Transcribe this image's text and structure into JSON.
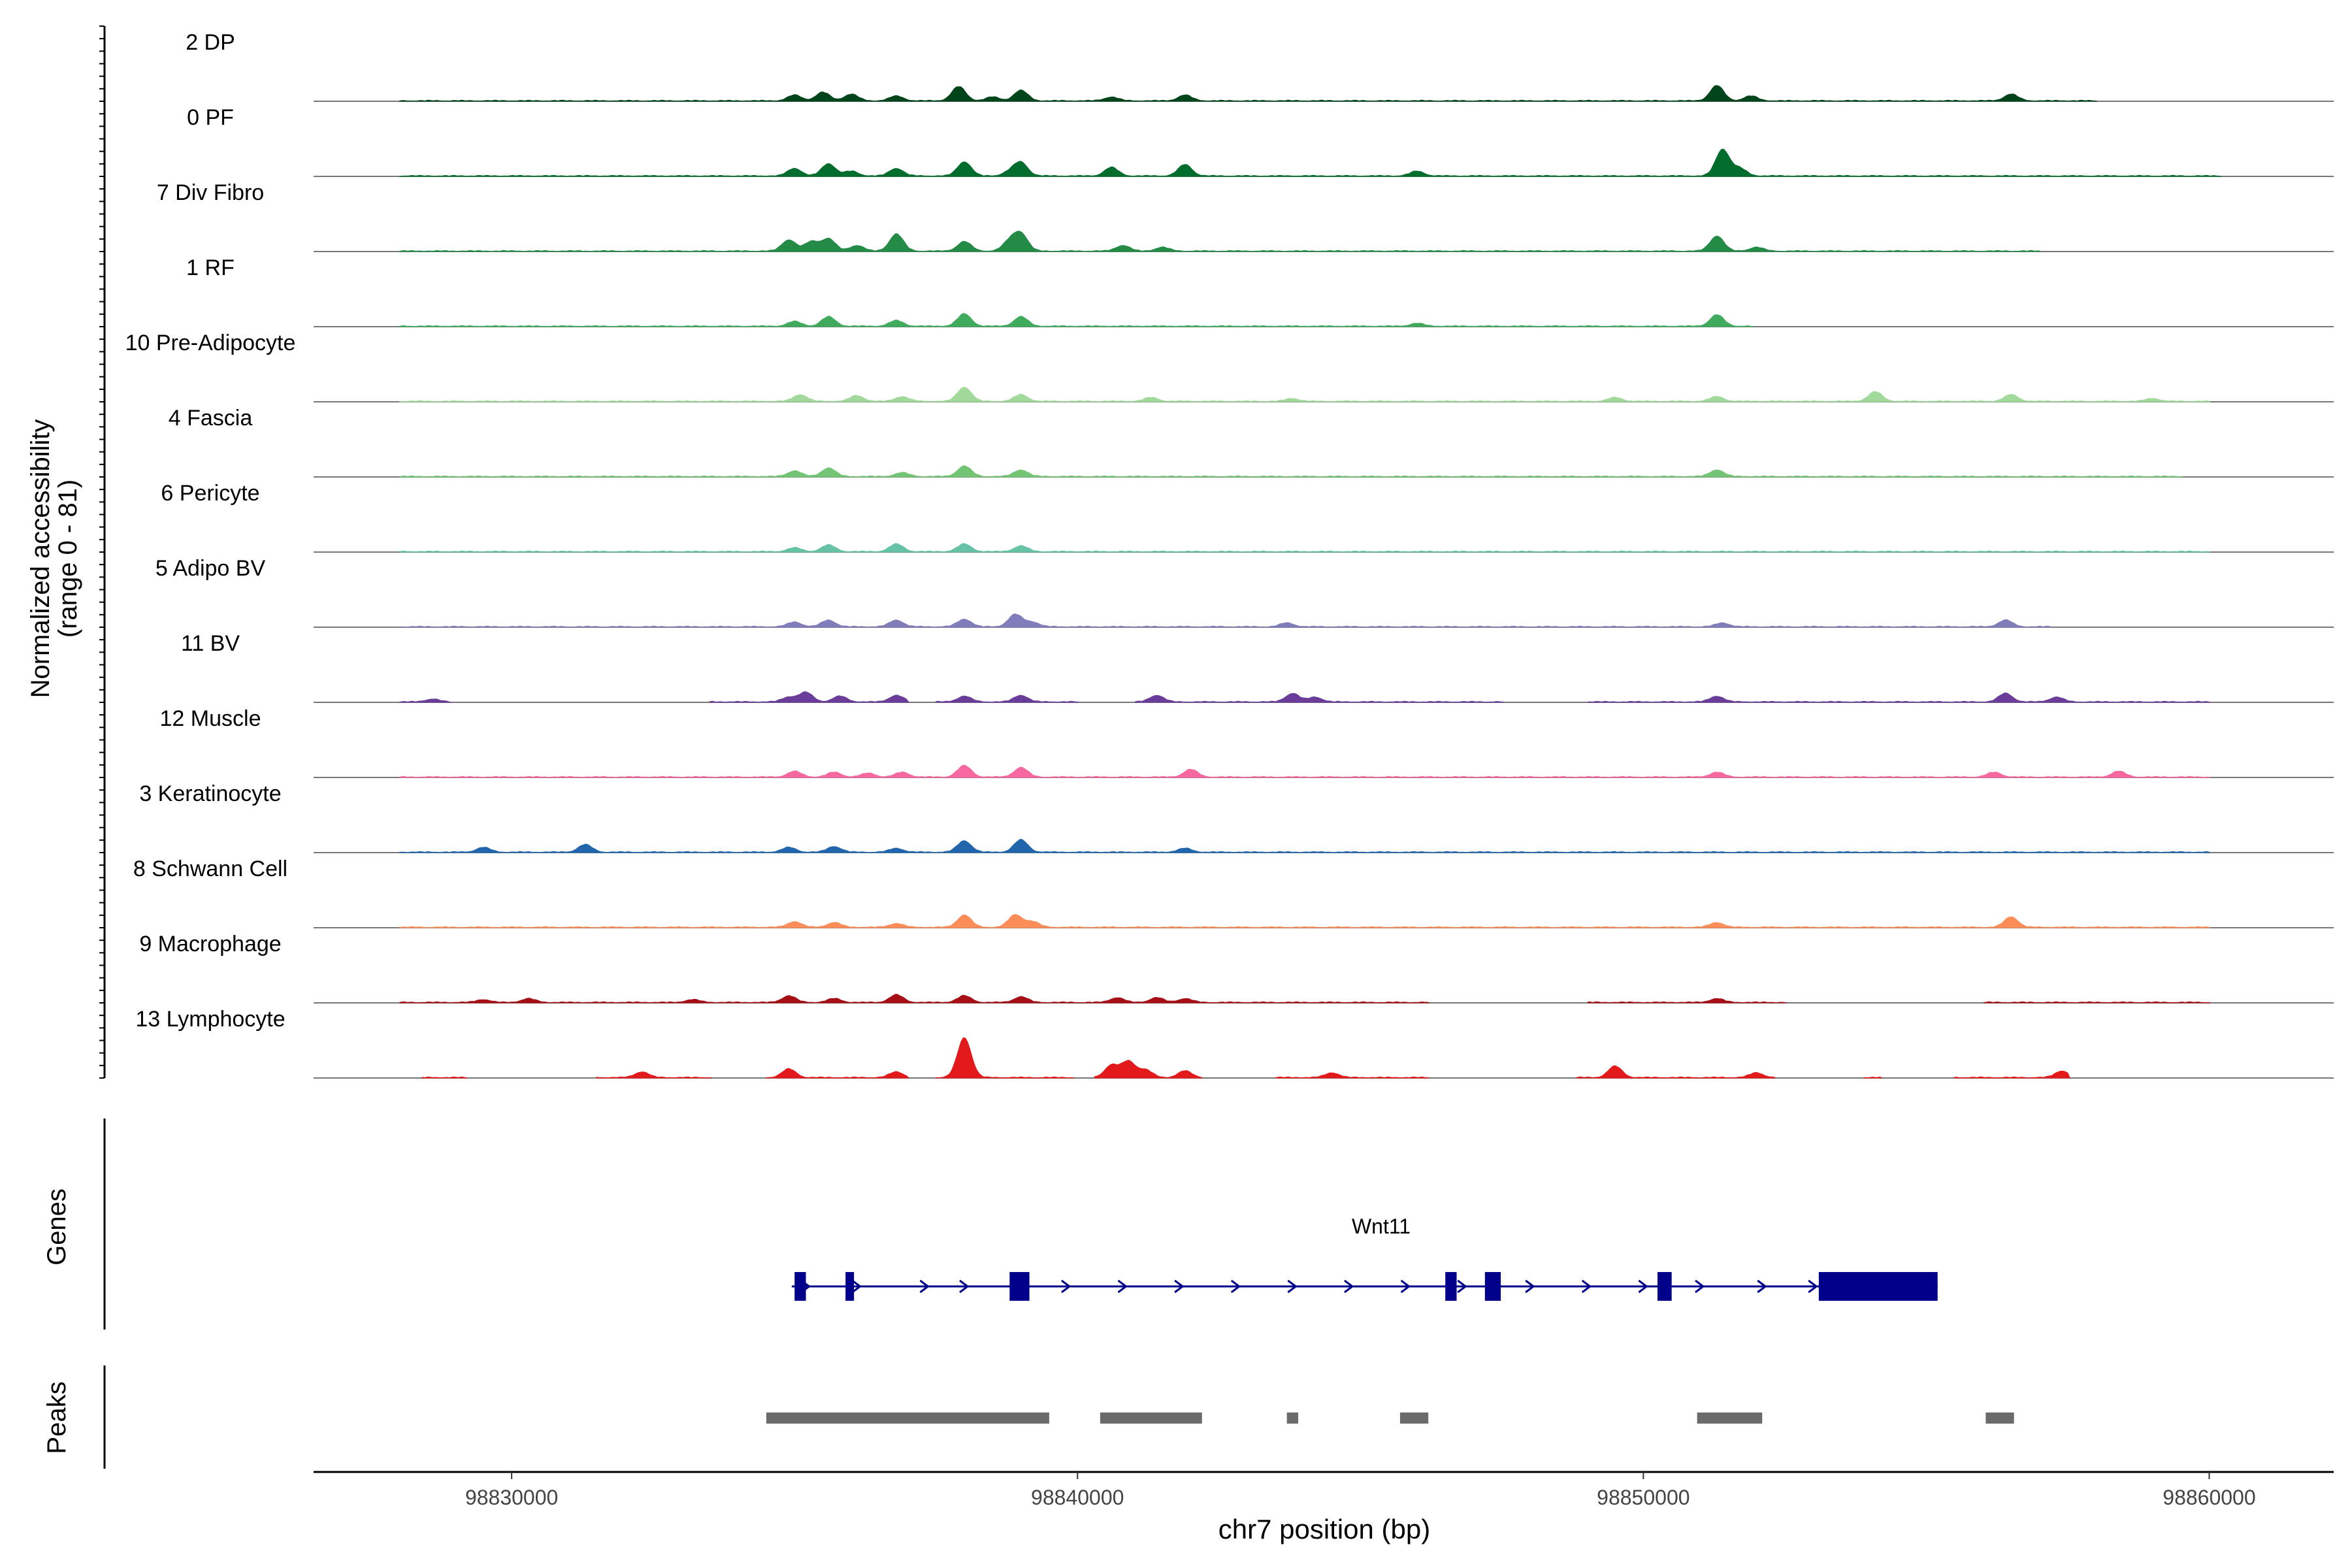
{
  "chart_data": {
    "type": "area",
    "subtype": "coverage-track",
    "chromosome": "chr7",
    "xlabel": "chr7 position (bp)",
    "ylabel_line1": "Normalized accessibility",
    "ylabel_line2": "(range 0 - 81)",
    "y_range": [
      0,
      81
    ],
    "x_range": [
      98826500,
      98862200
    ],
    "x_ticks": [
      98830000,
      98840000,
      98850000,
      98860000
    ],
    "x_tick_labels": [
      "98830000",
      "98840000",
      "98850000",
      "98860000"
    ],
    "tracks": [
      {
        "name": "2 DP",
        "color": "#00441b",
        "regions": [
          [
            98828000,
            98858000
          ]
        ],
        "peaks": [
          [
            98835000,
            6
          ],
          [
            98835500,
            9
          ],
          [
            98836000,
            7
          ],
          [
            98836800,
            5
          ],
          [
            98837900,
            15
          ],
          [
            98838500,
            4
          ],
          [
            98839000,
            11
          ],
          [
            98840600,
            4
          ],
          [
            98841900,
            6
          ],
          [
            98851300,
            16
          ],
          [
            98851900,
            5
          ],
          [
            98856500,
            7
          ]
        ]
      },
      {
        "name": "0 PF",
        "color": "#006d2c",
        "regions": [
          [
            98828000,
            98860200
          ]
        ],
        "peaks": [
          [
            98835000,
            8
          ],
          [
            98835600,
            13
          ],
          [
            98836000,
            5
          ],
          [
            98836800,
            8
          ],
          [
            98838000,
            15
          ],
          [
            98838800,
            4
          ],
          [
            98839000,
            14
          ],
          [
            98840600,
            9
          ],
          [
            98841900,
            12
          ],
          [
            98846000,
            5
          ],
          [
            98851400,
            28
          ],
          [
            98851700,
            8
          ]
        ]
      },
      {
        "name": "7 Div Fibro",
        "color": "#238b45",
        "regions": [
          [
            98828000,
            98857000
          ]
        ],
        "peaks": [
          [
            98834900,
            12
          ],
          [
            98835300,
            10
          ],
          [
            98835600,
            13
          ],
          [
            98836100,
            6
          ],
          [
            98836800,
            18
          ],
          [
            98838000,
            10
          ],
          [
            98838800,
            10
          ],
          [
            98839000,
            18
          ],
          [
            98840800,
            6
          ],
          [
            98841500,
            4
          ],
          [
            98851300,
            16
          ],
          [
            98852000,
            4
          ]
        ]
      },
      {
        "name": "1 RF",
        "color": "#41ab5d",
        "regions": [
          [
            98828000,
            98851900
          ]
        ],
        "peaks": [
          [
            98835000,
            5
          ],
          [
            98835600,
            10
          ],
          [
            98836800,
            6
          ],
          [
            98838000,
            13
          ],
          [
            98839000,
            10
          ],
          [
            98846000,
            3
          ],
          [
            98851300,
            12
          ]
        ]
      },
      {
        "name": "10 Pre-Adipocyte",
        "color": "#a1d99b",
        "regions": [
          [
            98828000,
            98860000
          ]
        ],
        "peaks": [
          [
            98835100,
            7
          ],
          [
            98836100,
            6
          ],
          [
            98836900,
            5
          ],
          [
            98838000,
            15
          ],
          [
            98839000,
            7
          ],
          [
            98841300,
            4
          ],
          [
            98843800,
            3
          ],
          [
            98849500,
            4
          ],
          [
            98851300,
            5
          ],
          [
            98854100,
            10
          ],
          [
            98856500,
            7
          ],
          [
            98859000,
            3
          ]
        ]
      },
      {
        "name": "4 Fascia",
        "color": "#74c476",
        "regions": [
          [
            98828000,
            98859500
          ]
        ],
        "peaks": [
          [
            98835000,
            6
          ],
          [
            98835600,
            9
          ],
          [
            98836900,
            4
          ],
          [
            98838000,
            11
          ],
          [
            98839000,
            7
          ],
          [
            98851300,
            7
          ]
        ]
      },
      {
        "name": "6 Pericyte",
        "color": "#66c2a4",
        "regions": [
          [
            98828000,
            98860000
          ]
        ],
        "peaks": [
          [
            98835000,
            4
          ],
          [
            98835600,
            7
          ],
          [
            98836800,
            8
          ],
          [
            98838000,
            8
          ],
          [
            98839000,
            6
          ]
        ]
      },
      {
        "name": "5 Adipo BV",
        "color": "#807dba",
        "regions": [
          [
            98828000,
            98857200
          ]
        ],
        "peaks": [
          [
            98835000,
            5
          ],
          [
            98835600,
            7
          ],
          [
            98836800,
            7
          ],
          [
            98838000,
            8
          ],
          [
            98838900,
            13
          ],
          [
            98839200,
            5
          ],
          [
            98843700,
            4
          ],
          [
            98851400,
            4
          ],
          [
            98856400,
            7
          ]
        ]
      },
      {
        "name": "11 BV",
        "color": "#6a3d9a",
        "regions": [
          [
            98828000,
            98828900
          ],
          [
            98833500,
            98837000
          ],
          [
            98837500,
            98840000
          ],
          [
            98841000,
            98847500
          ],
          [
            98849000,
            98860000
          ]
        ],
        "peaks": [
          [
            98828600,
            3
          ],
          [
            98834900,
            5
          ],
          [
            98835200,
            10
          ],
          [
            98835800,
            6
          ],
          [
            98836800,
            7
          ],
          [
            98838000,
            6
          ],
          [
            98839000,
            7
          ],
          [
            98841400,
            7
          ],
          [
            98843800,
            9
          ],
          [
            98844200,
            5
          ],
          [
            98851300,
            6
          ],
          [
            98856400,
            9
          ],
          [
            98857300,
            5
          ]
        ]
      },
      {
        "name": "12 Muscle",
        "color": "#f768a1",
        "regions": [
          [
            98828000,
            98860000
          ]
        ],
        "peaks": [
          [
            98835000,
            6
          ],
          [
            98835700,
            5
          ],
          [
            98836300,
            4
          ],
          [
            98836900,
            5
          ],
          [
            98838000,
            12
          ],
          [
            98839000,
            10
          ],
          [
            98842000,
            8
          ],
          [
            98851300,
            5
          ],
          [
            98856200,
            5
          ],
          [
            98858400,
            6
          ]
        ]
      },
      {
        "name": "3 Keratinocyte",
        "color": "#2166ac",
        "regions": [
          [
            98828000,
            98860000
          ]
        ],
        "peaks": [
          [
            98829500,
            5
          ],
          [
            98831300,
            8
          ],
          [
            98834900,
            5
          ],
          [
            98835700,
            6
          ],
          [
            98836800,
            4
          ],
          [
            98838000,
            12
          ],
          [
            98839000,
            13
          ],
          [
            98841900,
            4
          ]
        ]
      },
      {
        "name": "8 Schwann Cell",
        "color": "#fc8d59",
        "regions": [
          [
            98828000,
            98860000
          ]
        ],
        "peaks": [
          [
            98835000,
            6
          ],
          [
            98835700,
            5
          ],
          [
            98836800,
            4
          ],
          [
            98838000,
            13
          ],
          [
            98838900,
            13
          ],
          [
            98839200,
            6
          ],
          [
            98851300,
            5
          ],
          [
            98856500,
            11
          ]
        ]
      },
      {
        "name": "9 Macrophage",
        "color": "#a50f15",
        "regions": [
          [
            98828000,
            98846200
          ],
          [
            98849000,
            98852500
          ],
          [
            98856000,
            98860000
          ]
        ],
        "peaks": [
          [
            98829500,
            3
          ],
          [
            98830300,
            4
          ],
          [
            98833200,
            3
          ],
          [
            98834900,
            7
          ],
          [
            98835700,
            4
          ],
          [
            98836800,
            8
          ],
          [
            98838000,
            7
          ],
          [
            98839000,
            6
          ],
          [
            98840700,
            5
          ],
          [
            98841400,
            5
          ],
          [
            98841900,
            4
          ],
          [
            98851300,
            4
          ]
        ]
      },
      {
        "name": "13 Lymphocyte",
        "color": "#e31a1c",
        "regions": [
          [
            98828400,
            98829200
          ],
          [
            98831500,
            98833500
          ],
          [
            98834500,
            98837000
          ],
          [
            98837500,
            98839900
          ],
          [
            98840300,
            98842200
          ],
          [
            98843500,
            98846200
          ],
          [
            98848800,
            98852300
          ],
          [
            98853900,
            98854200
          ],
          [
            98855500,
            98857500
          ]
        ],
        "peaks": [
          [
            98832300,
            6
          ],
          [
            98834900,
            9
          ],
          [
            98836800,
            6
          ],
          [
            98838000,
            42
          ],
          [
            98840600,
            13
          ],
          [
            98840900,
            17
          ],
          [
            98841200,
            8
          ],
          [
            98841900,
            7
          ],
          [
            98844500,
            5
          ],
          [
            98849500,
            12
          ],
          [
            98852000,
            5
          ],
          [
            98857400,
            7
          ]
        ]
      }
    ],
    "genes_panel_label": "Genes",
    "gene": {
      "name": "Wnt11",
      "strand": "+",
      "color": "#00008b",
      "start": 98834950,
      "end": 98855200,
      "exons": [
        [
          98835000,
          98835200
        ],
        [
          98835900,
          98836050
        ],
        [
          98838800,
          98839150
        ],
        [
          98846500,
          98846700
        ],
        [
          98847200,
          98847480
        ],
        [
          98850250,
          98850500
        ],
        [
          98853100,
          98855200
        ]
      ],
      "arrows": [
        98835200,
        98836100,
        98837300,
        98838000,
        98839800,
        98840800,
        98841800,
        98842800,
        98843800,
        98844800,
        98845800,
        98846800,
        98848000,
        98849000,
        98850000,
        98851000,
        98852100,
        98853000
      ]
    },
    "peaks_panel_label": "Peaks",
    "peak_color": "#6b6b6b",
    "peak_regions": [
      [
        98834500,
        98839500
      ],
      [
        98840400,
        98842200
      ],
      [
        98843700,
        98843900
      ],
      [
        98845700,
        98846200
      ],
      [
        98850950,
        98852100
      ],
      [
        98856050,
        98856550
      ]
    ]
  }
}
